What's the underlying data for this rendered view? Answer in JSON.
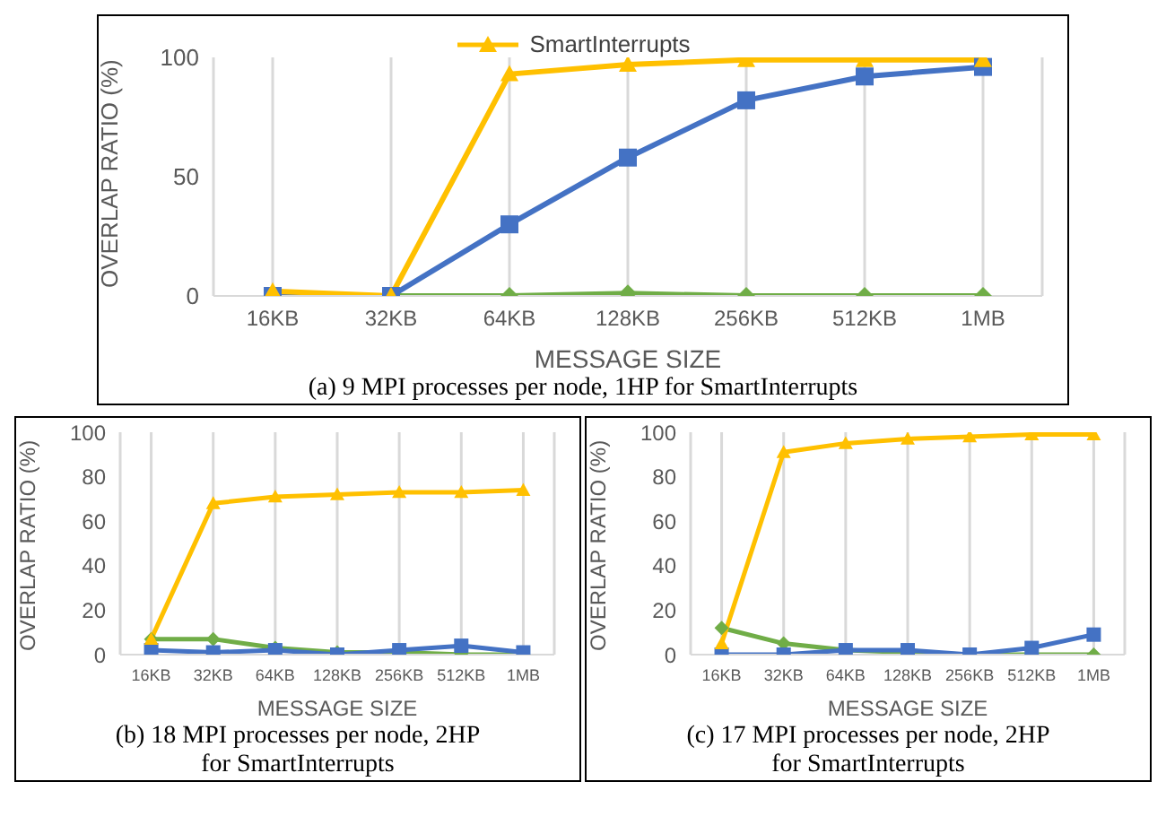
{
  "chart_data": [
    {
      "type": "line",
      "title": "(a) 9 MPI processes per node, 1HP for SmartInterrupts",
      "xlabel": "MESSAGE SIZE",
      "ylabel": "OVERLAP RATIO (%)",
      "categories": [
        "16KB",
        "32KB",
        "64KB",
        "128KB",
        "256KB",
        "512KB",
        "1MB"
      ],
      "ylim": [
        0,
        100
      ],
      "yticks": [
        0,
        50,
        100
      ],
      "grid": "x",
      "legend": "top",
      "series": [
        {
          "color": "#70ad47",
          "marker": "diamond",
          "values": [
            0,
            0,
            0,
            1,
            0,
            0,
            0
          ]
        },
        {
          "color": "#4472c4",
          "marker": "square",
          "values": [
            0,
            0,
            30,
            58,
            82,
            92,
            96
          ]
        },
        {
          "name": "SmartInterrupts",
          "color": "#ffc000",
          "marker": "triangle",
          "values": [
            2,
            0,
            93,
            97,
            99,
            99,
            99
          ]
        }
      ]
    },
    {
      "type": "line",
      "title": "(b) 18 MPI processes per node, 2HP for SmartInterrupts",
      "xlabel": "MESSAGE SIZE",
      "ylabel": "OVERLAP RATIO (%)",
      "categories": [
        "16KB",
        "32KB",
        "64KB",
        "128KB",
        "256KB",
        "512KB",
        "1MB"
      ],
      "ylim": [
        0,
        100
      ],
      "yticks": [
        0,
        20,
        40,
        60,
        80,
        100
      ],
      "grid": "x",
      "series": [
        {
          "color": "#70ad47",
          "marker": "diamond",
          "values": [
            7,
            7,
            3,
            1,
            1,
            0,
            0
          ]
        },
        {
          "color": "#4472c4",
          "marker": "square",
          "values": [
            2,
            1,
            2,
            0,
            2,
            4,
            1
          ]
        },
        {
          "color": "#ffc000",
          "marker": "triangle",
          "values": [
            7,
            68,
            71,
            72,
            73,
            73,
            74
          ]
        }
      ]
    },
    {
      "type": "line",
      "title": "(c) 17 MPI processes per node, 2HP for SmartInterrupts",
      "xlabel": "MESSAGE SIZE",
      "ylabel": "OVERLAP RATIO (%)",
      "categories": [
        "16KB",
        "32KB",
        "64KB",
        "128KB",
        "256KB",
        "512KB",
        "1MB"
      ],
      "ylim": [
        0,
        100
      ],
      "yticks": [
        0,
        20,
        40,
        60,
        80,
        100
      ],
      "grid": "x",
      "series": [
        {
          "color": "#70ad47",
          "marker": "diamond",
          "values": [
            12,
            5,
            2,
            1,
            0,
            0,
            0
          ]
        },
        {
          "color": "#4472c4",
          "marker": "square",
          "values": [
            0,
            0,
            2,
            2,
            0,
            3,
            9
          ]
        },
        {
          "color": "#ffc000",
          "marker": "triangle",
          "values": [
            5,
            91,
            95,
            97,
            98,
            99,
            99
          ]
        }
      ]
    }
  ]
}
